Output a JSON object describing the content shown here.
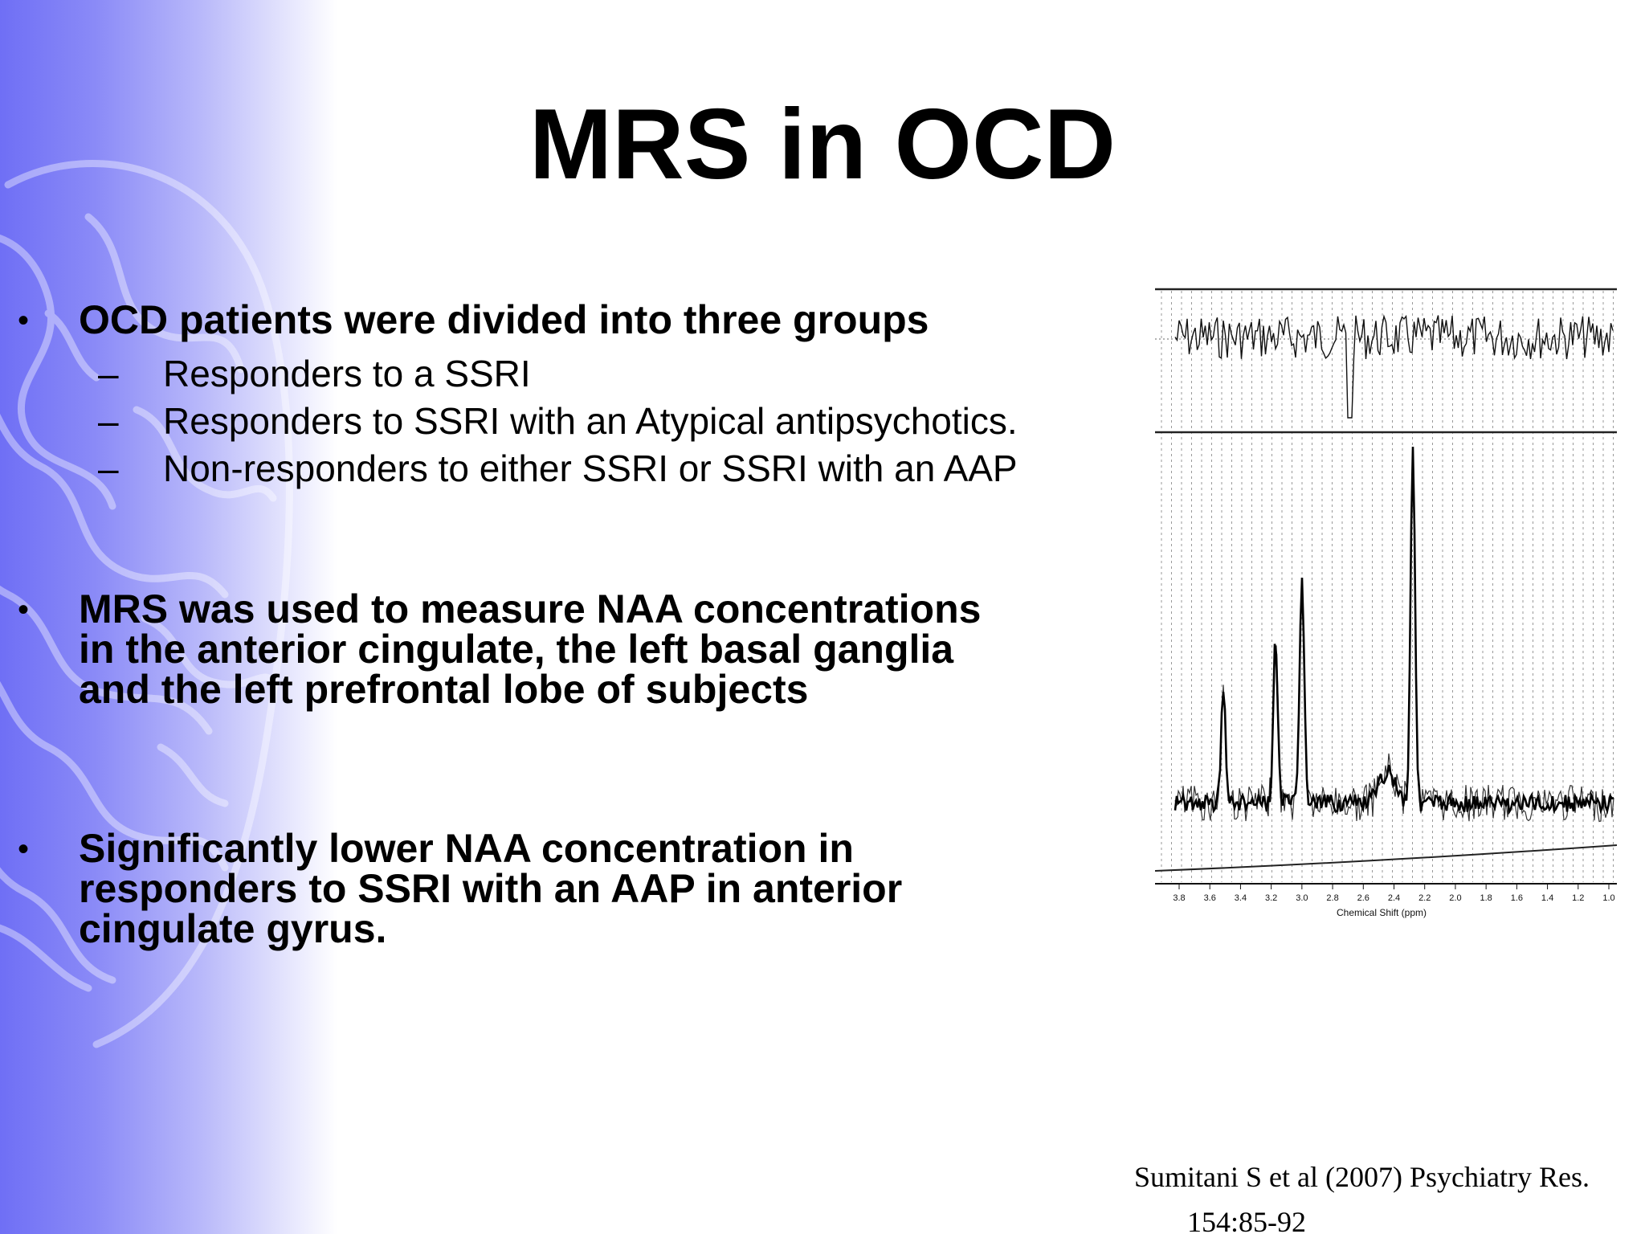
{
  "slide": {
    "title": "MRS in OCD",
    "bullets": [
      {
        "text": "OCD patients were divided into three groups",
        "sub_items": [
          "Responders to a SSRI",
          "Responders to SSRI with an Atypical antipsychotics.",
          "Non-responders to either SSRI or SSRI with an AAP"
        ]
      },
      {
        "lines": [
          "MRS was used to measure NAA concentrations",
          "in the anterior cingulate, the left basal ganglia",
          "and the left prefrontal lobe of subjects"
        ]
      },
      {
        "lines": [
          "Significantly lower NAA concentration in",
          "responders to SSRI with an AAP in anterior",
          "cingulate gyrus."
        ]
      }
    ],
    "bullet_symbol": "•",
    "dash_symbol": "–",
    "figure": {
      "x_ticks": [
        "3.8",
        "3.6",
        "3.4",
        "3.2",
        "3.0",
        "2.8",
        "2.6",
        "2.4",
        "2.2",
        "2.0",
        "1.8",
        "1.6",
        "1.4",
        "1.2",
        "1.0"
      ],
      "x_label": "Chemical Shift (ppm)"
    },
    "citation": {
      "line1": "Sumitani S et al (2007) Psychiatry Res.",
      "line2": "154:85-92"
    }
  },
  "colors": {
    "gradient_left": "#6f6ff5",
    "text": "#000000",
    "background": "#ffffff"
  }
}
